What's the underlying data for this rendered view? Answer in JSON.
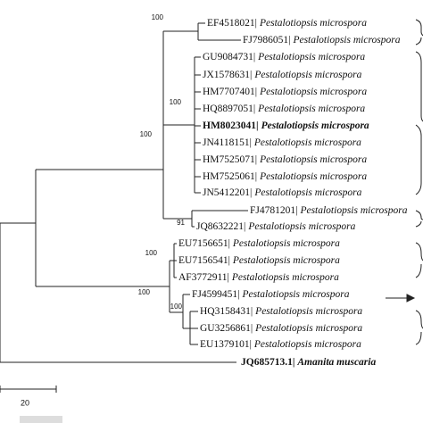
{
  "leaves": [
    {
      "accession": "EF4518021|",
      "species": "Pestalotiopsis microspora"
    },
    {
      "accession": "FJ7986051|",
      "species": "Pestalotiopsis microspora"
    },
    {
      "accession": "GU9084731|",
      "species": "Pestalotiopsis microspora"
    },
    {
      "accession": "JX1578631|",
      "species": "Pestalotiopsis microspora"
    },
    {
      "accession": "HM7707401|",
      "species": "Pestalotiopsis microspora"
    },
    {
      "accession": "HQ8897051|",
      "species": "Pestalotiopsis microspora"
    },
    {
      "accession": "HM8023041|",
      "species": "Pestalotiopsis microspora",
      "bold": true
    },
    {
      "accession": "JN4118151|",
      "species": "Pestalotiopsis microspora"
    },
    {
      "accession": "HM7525071|",
      "species": "Pestalotiopsis microspora"
    },
    {
      "accession": "HM7525061|",
      "species": "Pestalotiopsis microspora"
    },
    {
      "accession": "JN5412201|",
      "species": "Pestalotiopsis microspora"
    },
    {
      "accession": "FJ4781201|",
      "species": "Pestalotiopsis microspora"
    },
    {
      "accession": "JQ8632221|",
      "species": "Pestalotiopsis microspora"
    },
    {
      "accession": "EU7156651|",
      "species": "Pestalotiopsis microspora"
    },
    {
      "accession": "EU7156541|",
      "species": "Pestalotiopsis microspora"
    },
    {
      "accession": "AF3772911|",
      "species": "Pestalotiopsis microspora"
    },
    {
      "accession": "FJ4599451|",
      "species": "Pestalotiopsis microspora"
    },
    {
      "accession": "HQ3158431|",
      "species": "Pestalotiopsis microspora"
    },
    {
      "accession": "GU3256861|",
      "species": "Pestalotiopsis microspora"
    },
    {
      "accession": "EU1379101|",
      "species": "Pestalotiopsis microspora"
    },
    {
      "accession": "JQ685713.1|",
      "species": "Amanita muscaria",
      "bold": true
    }
  ],
  "bootstrap": [
    "100",
    "100",
    "100",
    "91",
    "100",
    "100",
    "100"
  ],
  "scale_bar": {
    "label": "20"
  }
}
